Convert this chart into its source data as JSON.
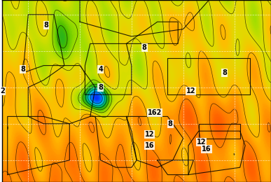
{
  "figsize": [
    3.87,
    2.6
  ],
  "dpi": 100,
  "xlim": [
    -10,
    42
  ],
  "ylim": [
    35,
    60
  ],
  "grid_lons": [
    -5,
    5,
    15,
    25,
    35
  ],
  "grid_lats": [
    38,
    43,
    48,
    53,
    58
  ],
  "colormap_colors": [
    "#7700cc",
    "#2200dd",
    "#0044ff",
    "#0088ff",
    "#00cccc",
    "#00aa44",
    "#44bb00",
    "#99dd00",
    "#dddd00",
    "#ffbb00",
    "#ff8800",
    "#ff5500",
    "#dd2200",
    "#aa1100"
  ],
  "label_positions": [
    [
      "8",
      -1.5,
      56.5
    ],
    [
      "8",
      -6.0,
      50.5
    ],
    [
      "4",
      9.0,
      50.5
    ],
    [
      "8",
      9.0,
      48.0
    ],
    [
      "2",
      -10.0,
      47.5
    ],
    [
      "8",
      17.5,
      53.5
    ],
    [
      "8",
      33.0,
      50.0
    ],
    [
      "12",
      26.5,
      47.5
    ],
    [
      "162",
      19.5,
      44.5
    ],
    [
      "8",
      22.5,
      43.0
    ],
    [
      "16",
      18.5,
      40.0
    ],
    [
      "12",
      18.5,
      41.5
    ],
    [
      "12",
      28.5,
      40.5
    ],
    [
      "16",
      29.5,
      39.5
    ]
  ],
  "borders": [
    [
      [
        -9,
        36
      ],
      [
        -9,
        44
      ],
      [
        -2,
        44
      ],
      [
        3,
        43
      ],
      [
        3,
        38
      ],
      [
        -9,
        36
      ]
    ],
    [
      [
        -5,
        44
      ],
      [
        -2,
        43
      ],
      [
        3,
        43
      ],
      [
        7,
        44
      ],
      [
        8,
        48
      ],
      [
        5,
        51
      ],
      [
        2,
        51
      ],
      [
        -2,
        49
      ],
      [
        -5,
        48
      ],
      [
        -5,
        44
      ]
    ],
    [
      [
        7,
        44
      ],
      [
        14,
        44
      ],
      [
        15,
        42
      ],
      [
        16,
        38
      ],
      [
        15,
        37
      ],
      [
        12,
        37
      ],
      [
        9,
        38
      ],
      [
        8,
        44
      ],
      [
        7,
        44
      ]
    ],
    [
      [
        -6,
        50
      ],
      [
        -2,
        51
      ],
      [
        2,
        51
      ],
      [
        0,
        58
      ],
      [
        -5,
        58
      ],
      [
        -6,
        50
      ]
    ],
    [
      [
        6,
        47
      ],
      [
        15,
        47
      ],
      [
        15,
        51
      ],
      [
        14,
        54
      ],
      [
        7,
        54
      ],
      [
        6,
        51
      ],
      [
        6,
        47
      ]
    ],
    [
      [
        5,
        57
      ],
      [
        5,
        62
      ],
      [
        15,
        70
      ],
      [
        25,
        70
      ],
      [
        30,
        60
      ],
      [
        25,
        56
      ],
      [
        15,
        55
      ],
      [
        10,
        56
      ],
      [
        5,
        57
      ]
    ],
    [
      [
        14,
        54
      ],
      [
        24,
        54
      ],
      [
        24,
        57
      ],
      [
        20,
        57
      ],
      [
        14,
        54
      ]
    ],
    [
      [
        14,
        44
      ],
      [
        22,
        44
      ],
      [
        25,
        41
      ],
      [
        23,
        38
      ],
      [
        20,
        37
      ],
      [
        16,
        38
      ],
      [
        14,
        44
      ]
    ],
    [
      [
        20,
        38
      ],
      [
        27,
        38
      ],
      [
        26,
        36
      ],
      [
        22,
        36
      ],
      [
        20,
        38
      ]
    ],
    [
      [
        26,
        36
      ],
      [
        36,
        37
      ],
      [
        37,
        40
      ],
      [
        36,
        42
      ],
      [
        28,
        42
      ],
      [
        26,
        40
      ],
      [
        26,
        36
      ]
    ],
    [
      [
        22,
        47
      ],
      [
        38,
        47
      ],
      [
        38,
        52
      ],
      [
        30,
        52
      ],
      [
        22,
        52
      ],
      [
        22,
        47
      ]
    ],
    [
      [
        28,
        41
      ],
      [
        36,
        41
      ],
      [
        36,
        43
      ],
      [
        28,
        43
      ],
      [
        28,
        41
      ]
    ]
  ]
}
